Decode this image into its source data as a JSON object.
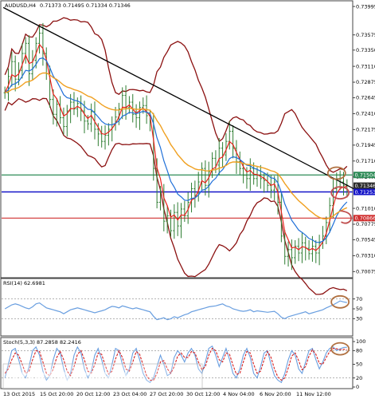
{
  "chart_data": {
    "type": "candlestick",
    "header": {
      "symbol": "AUDUSD,H4",
      "ohlc": "0.71373 0.71495 0.71334 0.71346"
    },
    "price_axis": {
      "ylim": [
        0.7002,
        0.7402
      ],
      "ticks": [
        "0.73995",
        "0.73575",
        "0.73350",
        "0.73110",
        "0.72875",
        "0.72645",
        "0.72410",
        "0.72175",
        "0.71945",
        "0.71710",
        "0.71475",
        "0.71010",
        "0.70775",
        "0.70545",
        "0.70310",
        "0.70075"
      ]
    },
    "time_axis": {
      "labels": [
        "13 Oct 2015",
        "15 Oct 20:00",
        "20 Oct 12:00",
        "23 Oct 04:00",
        "27 Oct 20:00",
        "30 Oct 12:00",
        "4 Nov 04:00",
        "6 Nov 20:00",
        "11 Nov 12:00"
      ]
    },
    "price_levels": [
      {
        "label": "0.71504",
        "value": 0.71504,
        "color": "#2e8b57",
        "style": "line"
      },
      {
        "label": "0.71346",
        "value": 0.71346,
        "color": "#2b2b2b",
        "style": "tag"
      },
      {
        "label": "0.71253",
        "value": 0.71253,
        "color": "#1414c8",
        "style": "line"
      },
      {
        "label": "0.70866",
        "value": 0.70866,
        "color": "#d03030",
        "style": "line"
      }
    ],
    "trendline": {
      "from": [
        0,
        0.7398
      ],
      "to": [
        100,
        0.713
      ],
      "color": "#000000"
    },
    "series": [
      {
        "kind": "ohlc",
        "color": "#2e7d32",
        "close": [
          0.7272,
          0.7296,
          0.7318,
          0.7292,
          0.7305,
          0.733,
          0.7345,
          0.73,
          0.732,
          0.7345,
          0.736,
          0.733,
          0.73,
          0.7262,
          0.724,
          0.7255,
          0.7235,
          0.7222,
          0.7245,
          0.7258,
          0.7248,
          0.7256,
          0.7245,
          0.723,
          0.7226,
          0.7244,
          0.7218,
          0.7211,
          0.72,
          0.7209,
          0.7218,
          0.7225,
          0.7236,
          0.7248,
          0.7268,
          0.725,
          0.7258,
          0.724,
          0.7235,
          0.725,
          0.7253,
          0.7238,
          0.723,
          0.716,
          0.711,
          0.7125,
          0.7082,
          0.709,
          0.7068,
          0.7095,
          0.7075,
          0.71,
          0.709,
          0.711,
          0.713,
          0.712,
          0.714,
          0.716,
          0.7135,
          0.7155,
          0.7175,
          0.7165,
          0.719,
          0.718,
          0.72,
          0.7215,
          0.719,
          0.717,
          0.716,
          0.715,
          0.7145,
          0.716,
          0.7145,
          0.715,
          0.7145,
          0.7142,
          0.7135,
          0.7128,
          0.714,
          0.711,
          0.706,
          0.703,
          0.704,
          0.7028,
          0.7045,
          0.7035,
          0.705,
          0.7042,
          0.7034,
          0.7045,
          0.7035,
          0.705,
          0.706,
          0.708,
          0.7105,
          0.713,
          0.7145,
          0.714,
          0.7135,
          0.7135
        ]
      },
      {
        "kind": "ma-fast",
        "color": "#e8201a"
      },
      {
        "kind": "ma-mid",
        "color": "#1e6fd8"
      },
      {
        "kind": "ma-slow",
        "color": "#f0a020"
      },
      {
        "kind": "bands",
        "color": "#8b1010"
      }
    ],
    "rsi": {
      "label": "RSI(14) 62.6981",
      "ylim": [
        0,
        100
      ],
      "ticks": [
        "70",
        "50",
        "30"
      ],
      "color": "#6a9fe0",
      "values": [
        50,
        54,
        58,
        60,
        58,
        55,
        52,
        50,
        54,
        60,
        62,
        57,
        52,
        50,
        48,
        46,
        44,
        40,
        44,
        48,
        50,
        52,
        50,
        48,
        46,
        44,
        42,
        44,
        46,
        48,
        52,
        55,
        54,
        52,
        56,
        54,
        52,
        50,
        52,
        50,
        48,
        46,
        44,
        35,
        28,
        30,
        32,
        28,
        30,
        34,
        32,
        35,
        38,
        40,
        44,
        46,
        48,
        50,
        52,
        54,
        55,
        56,
        58,
        60,
        56,
        54,
        50,
        48,
        46,
        45,
        46,
        48,
        44,
        46,
        45,
        44,
        43,
        44,
        45,
        40,
        33,
        30,
        34,
        36,
        38,
        40,
        42,
        44,
        40,
        42,
        44,
        46,
        48,
        52,
        55,
        58,
        62,
        66,
        64,
        62.7
      ]
    },
    "stochastic": {
      "label": "Stoch(5,3,3) 87.2858 82.2416",
      "ylim": [
        0,
        100
      ],
      "ticks": [
        "100",
        "80",
        "50",
        "20",
        "0"
      ],
      "main_color": "#6a9fe0",
      "signal_color": "#d62020",
      "main": [
        20,
        50,
        80,
        85,
        60,
        30,
        20,
        45,
        80,
        88,
        70,
        35,
        15,
        25,
        60,
        85,
        75,
        40,
        15,
        30,
        70,
        88,
        75,
        40,
        20,
        35,
        70,
        85,
        60,
        30,
        20,
        50,
        85,
        80,
        50,
        25,
        40,
        75,
        85,
        60,
        30,
        15,
        10,
        20,
        45,
        70,
        50,
        25,
        30,
        65,
        80,
        70,
        55,
        75,
        85,
        70,
        40,
        30,
        55,
        85,
        90,
        70,
        45,
        65,
        85,
        60,
        30,
        20,
        40,
        70,
        85,
        65,
        30,
        20,
        45,
        75,
        80,
        50,
        25,
        15,
        10,
        30,
        60,
        80,
        70,
        40,
        30,
        55,
        80,
        85,
        60,
        40,
        55,
        75,
        85,
        88,
        80,
        84,
        87,
        87.3
      ],
      "signal": [
        30,
        40,
        60,
        75,
        70,
        50,
        30,
        35,
        60,
        80,
        78,
        55,
        30,
        25,
        40,
        65,
        78,
        60,
        35,
        25,
        45,
        72,
        80,
        60,
        35,
        30,
        50,
        75,
        72,
        48,
        28,
        35,
        62,
        80,
        65,
        40,
        35,
        55,
        78,
        72,
        48,
        25,
        15,
        15,
        30,
        55,
        58,
        40,
        30,
        45,
        68,
        75,
        65,
        65,
        78,
        75,
        55,
        38,
        45,
        70,
        85,
        80,
        60,
        55,
        75,
        72,
        48,
        28,
        30,
        55,
        78,
        75,
        50,
        30,
        35,
        60,
        78,
        65,
        40,
        22,
        15,
        20,
        42,
        68,
        75,
        58,
        38,
        45,
        68,
        82,
        72,
        52,
        50,
        65,
        78,
        85,
        84,
        82,
        83,
        82.2
      ]
    },
    "annotations": [
      {
        "shape": "ellipse",
        "panel": "price",
        "at": [
          96,
          0.7153
        ],
        "color": "#b07040"
      },
      {
        "shape": "ellipse",
        "panel": "price",
        "at": [
          97,
          0.7124
        ],
        "color": "#c05050"
      },
      {
        "shape": "arc",
        "panel": "price",
        "at": [
          98,
          0.7088
        ],
        "color": "#c05050"
      },
      {
        "shape": "ellipse",
        "panel": "rsi",
        "at": [
          97,
          64
        ],
        "color": "#b07040"
      },
      {
        "shape": "ellipse",
        "panel": "stoch",
        "at": [
          97,
          84
        ],
        "color": "#b07040"
      }
    ],
    "watermark": "instaforex",
    "logo_text": "Instant Forex Trading"
  }
}
